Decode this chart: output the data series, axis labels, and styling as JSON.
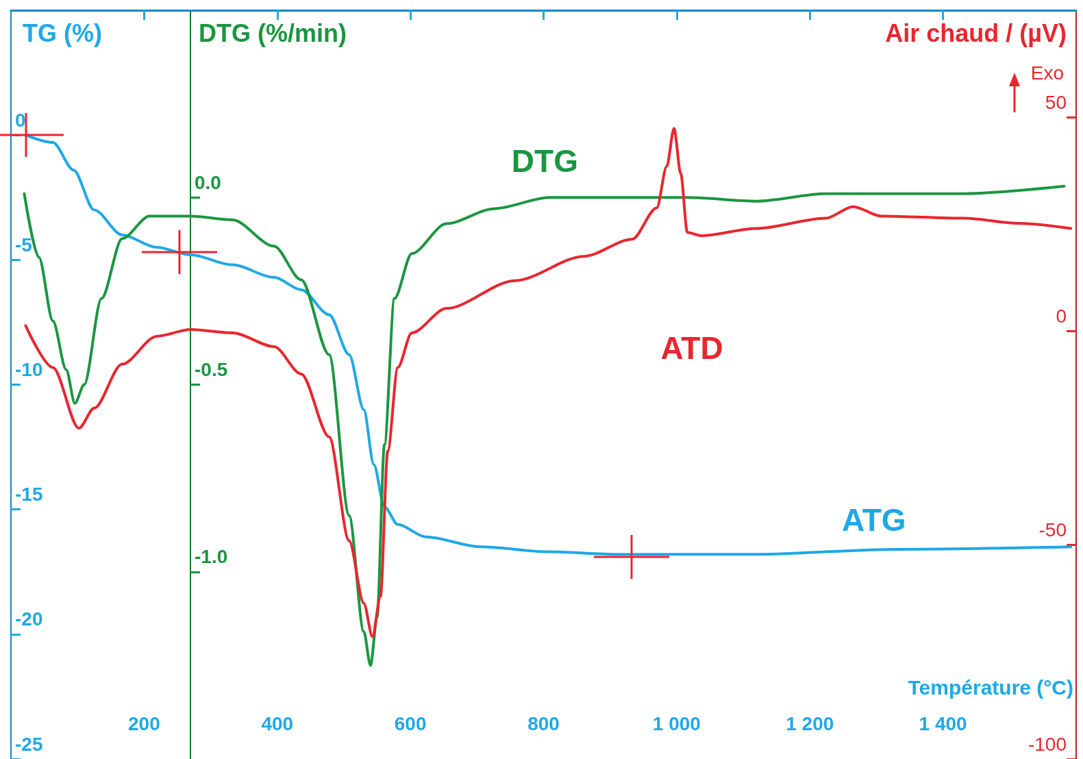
{
  "chart_data": {
    "type": "line",
    "xlabel": "Température (°C)",
    "ylabel": "TG (%)",
    "y2label": "DTG (%/min)",
    "y3label": "Air chaud / (µV)",
    "annotations": [
      "Exo"
    ],
    "xlim": [
      0,
      1600
    ],
    "xticks": [
      200,
      400,
      600,
      800,
      {
        "value": 1000,
        "label": "1 000"
      },
      {
        "value": 1200,
        "label": "1 200"
      },
      {
        "value": 1400,
        "label": "1 400"
      }
    ],
    "ylim": [
      -25,
      5
    ],
    "yticks": [
      -25,
      -20,
      -15,
      -10,
      -5,
      0
    ],
    "y2lim": [
      -1.5,
      0.5
    ],
    "y2ticks": [
      {
        "value": -1.0,
        "label": "-1.0"
      },
      -0.5,
      {
        "value": 0,
        "label": "0.0"
      }
    ],
    "y3lim": [
      -100,
      75
    ],
    "y3ticks": [
      -100,
      -50,
      0,
      50
    ],
    "grid": false,
    "legend": false,
    "marker": "none",
    "line_style": "solid",
    "series": [
      {
        "name": "ATG",
        "color": "#1ea8e6",
        "axis": "y",
        "x": [
          22,
          63,
          94,
          125,
          167,
          219,
          270,
          333,
          395,
          436,
          478,
          508,
          530,
          545,
          561,
          581,
          623,
          706,
          809,
          913,
          1120,
          1327,
          1592
        ],
        "values": [
          0,
          -0.3,
          -1.4,
          -3.0,
          -4.0,
          -4.5,
          -4.8,
          -5.2,
          -5.7,
          -6.2,
          -7.2,
          -8.8,
          -11,
          -13.2,
          -14.9,
          -15.6,
          -16.1,
          -16.5,
          -16.7,
          -16.8,
          -16.8,
          -16.6,
          -16.5
        ]
      },
      {
        "name": "DTG",
        "color": "#1a9640",
        "axis": "y2",
        "x": [
          20,
          42,
          63,
          83,
          96,
          110,
          136,
          167,
          208,
          270,
          333,
          395,
          436,
          478,
          508,
          530,
          540,
          550,
          561,
          576,
          602,
          654,
          726,
          809,
          913,
          1016,
          1120,
          1224,
          1431,
          1582
        ],
        "values": [
          0.01,
          -0.16,
          -0.33,
          -0.46,
          -0.55,
          -0.5,
          -0.27,
          -0.11,
          -0.05,
          -0.05,
          -0.06,
          -0.13,
          -0.22,
          -0.42,
          -0.85,
          -1.16,
          -1.25,
          -1.12,
          -0.66,
          -0.27,
          -0.15,
          -0.07,
          -0.03,
          0,
          0,
          0,
          -0.01,
          0.01,
          0.01,
          0.03
        ]
      },
      {
        "name": "ATD",
        "color": "#e8262e",
        "axis": "y3",
        "x": [
          22,
          63,
          102,
          125,
          167,
          219,
          270,
          333,
          395,
          436,
          478,
          508,
          530,
          543,
          555,
          566,
          581,
          602,
          654,
          757,
          861,
          933,
          970,
          985,
          996,
          1006,
          1016,
          1037,
          1120,
          1224,
          1265,
          1307,
          1431,
          1514,
          1592
        ],
        "values": [
          1.3,
          -8.5,
          -22.7,
          -18,
          -7.7,
          -1.2,
          0.4,
          -0.4,
          -3.6,
          -10,
          -24.7,
          -49,
          -63.6,
          -71.4,
          -62,
          -28,
          -8.5,
          -0.4,
          5.3,
          11.8,
          17.5,
          21.5,
          28.8,
          38.5,
          47.4,
          36.9,
          23.1,
          22.3,
          24,
          26.4,
          29.1,
          26.9,
          26.4,
          25.2,
          24
        ]
      }
    ]
  }
}
